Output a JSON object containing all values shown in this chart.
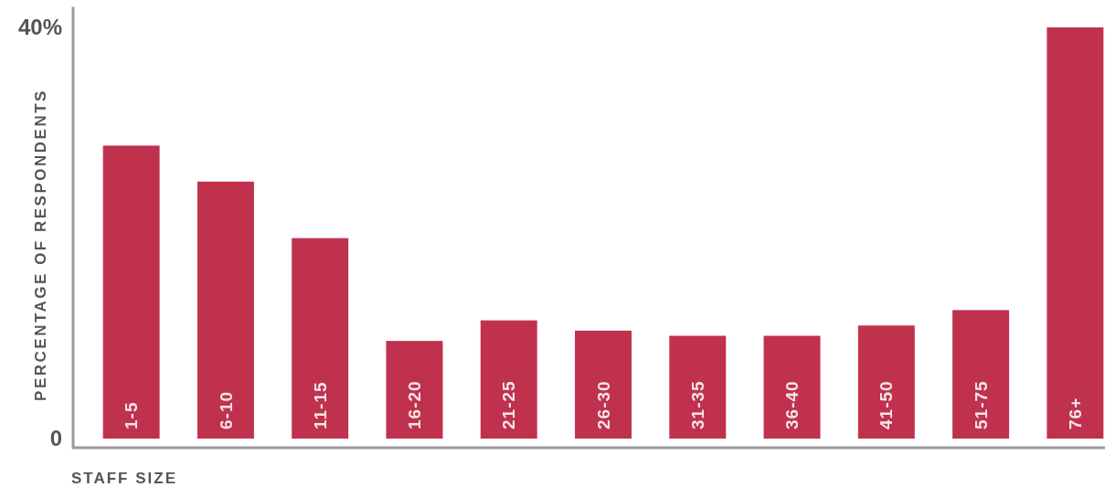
{
  "chart_data": {
    "type": "bar",
    "xlabel": "STAFF SIZE",
    "ylabel": "PERCENTAGE OF RESPONDENTS",
    "categories": [
      "1-5",
      "6-10",
      "11-15",
      "16-20",
      "21-25",
      "26-30",
      "31-35",
      "36-40",
      "41-50",
      "51-75",
      "76+"
    ],
    "values": [
      28.5,
      25,
      19.5,
      9.5,
      11.5,
      10.5,
      10,
      10,
      11,
      12.5,
      40
    ],
    "color": "#c0314e",
    "ylim": [
      0,
      42
    ],
    "yticks": [
      0,
      {
        "value": 40,
        "label": "40%"
      }
    ],
    "grid": false
  }
}
